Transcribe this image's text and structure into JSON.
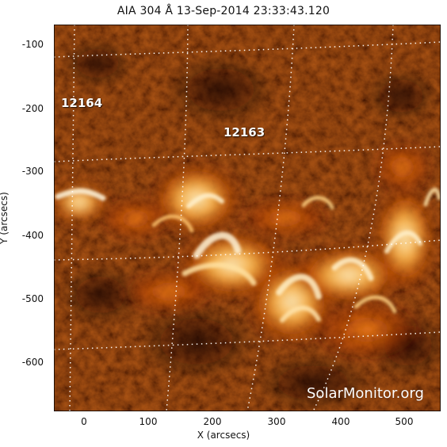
{
  "title": "AIA 304 Å 13-Sep-2014 23:33:43.120",
  "axes": {
    "xlabel": "X (arcsecs)",
    "ylabel": "Y (arcsecs)",
    "xticks": [
      "0",
      "100",
      "200",
      "300",
      "400",
      "500"
    ],
    "yticks": [
      "-100",
      "-200",
      "-300",
      "-400",
      "-500",
      "-600"
    ]
  },
  "regions": [
    {
      "label": "12164"
    },
    {
      "label": "12163"
    }
  ],
  "watermark": "SolarMonitor.org",
  "colors": {
    "frame": "#000000",
    "background": "#ffffff",
    "plot_dark": "#3a0700",
    "plot_mid": "#b33b00",
    "plot_bright": "#fff1c8",
    "grid": "#ffffff"
  }
}
